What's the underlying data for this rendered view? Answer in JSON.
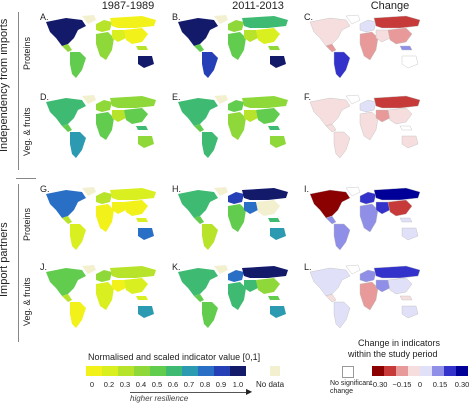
{
  "columns": [
    "1987-1989",
    "2011-2013",
    "Change"
  ],
  "row_groups": [
    "Independency from imports",
    "Import partners"
  ],
  "rows": [
    "Proteins",
    "Veg. & fruits",
    "Proteins",
    "Veg. & fruits"
  ],
  "panel_letters": [
    "A.",
    "B.",
    "C.",
    "D.",
    "E.",
    "F.",
    "G.",
    "H.",
    "I.",
    "J.",
    "K.",
    "L."
  ],
  "legend_norm": {
    "title": "Normalised and scaled indicator value [0,1]",
    "ticks": [
      "0",
      "0.2",
      "0.3",
      "0.4",
      "0.5",
      "0.6",
      "0.7",
      "0.8",
      "0.9",
      "1.0"
    ],
    "colors": [
      "#f2f21a",
      "#d9ef1f",
      "#b7e32a",
      "#8fd83a",
      "#62cc4e",
      "#3fba72",
      "#2c9ab0",
      "#2a6fc6",
      "#2540b6",
      "#141a6a"
    ],
    "no_data_label": "No data",
    "no_data_color": "#f3f0cf",
    "arrow_label": "higher resilience"
  },
  "legend_change": {
    "title_line1": "Change in indicators",
    "title_line2": "within the study period",
    "no_sig_label_1": "No significant",
    "no_sig_label_2": "change",
    "ticks": [
      "−0.30",
      "−0.15",
      "0",
      "0.15",
      "0.30"
    ],
    "colors": [
      "#8b0000",
      "#c73a3a",
      "#e89a9a",
      "#f6dede",
      "#e0e0f8",
      "#8f8fe8",
      "#3333cc",
      "#000099"
    ]
  }
}
